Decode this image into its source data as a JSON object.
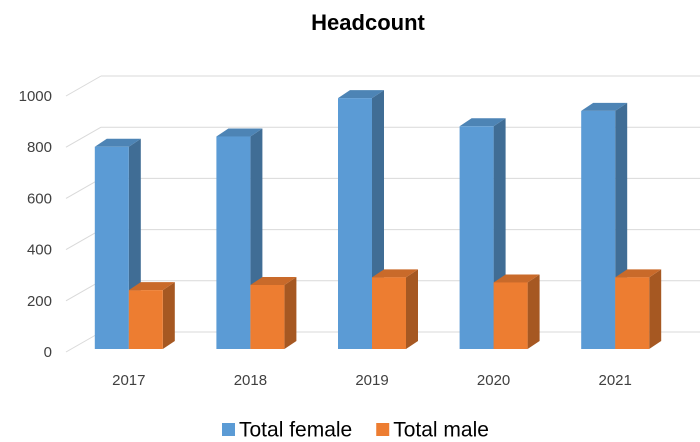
{
  "chart_data": {
    "type": "bar3d",
    "title": "Headcount",
    "categories": [
      "2017",
      "2018",
      "2019",
      "2020",
      "2021"
    ],
    "series": [
      {
        "name": "Total female",
        "color": "#5b9bd5",
        "values": [
          790,
          830,
          980,
          870,
          930
        ]
      },
      {
        "name": "Total male",
        "color": "#ed7d31",
        "values": [
          230,
          250,
          280,
          260,
          280
        ]
      }
    ],
    "ylim": [
      0,
      1000
    ],
    "yticks": [
      0,
      200,
      400,
      600,
      800,
      1000
    ],
    "grid": true,
    "legend": "bottom"
  }
}
